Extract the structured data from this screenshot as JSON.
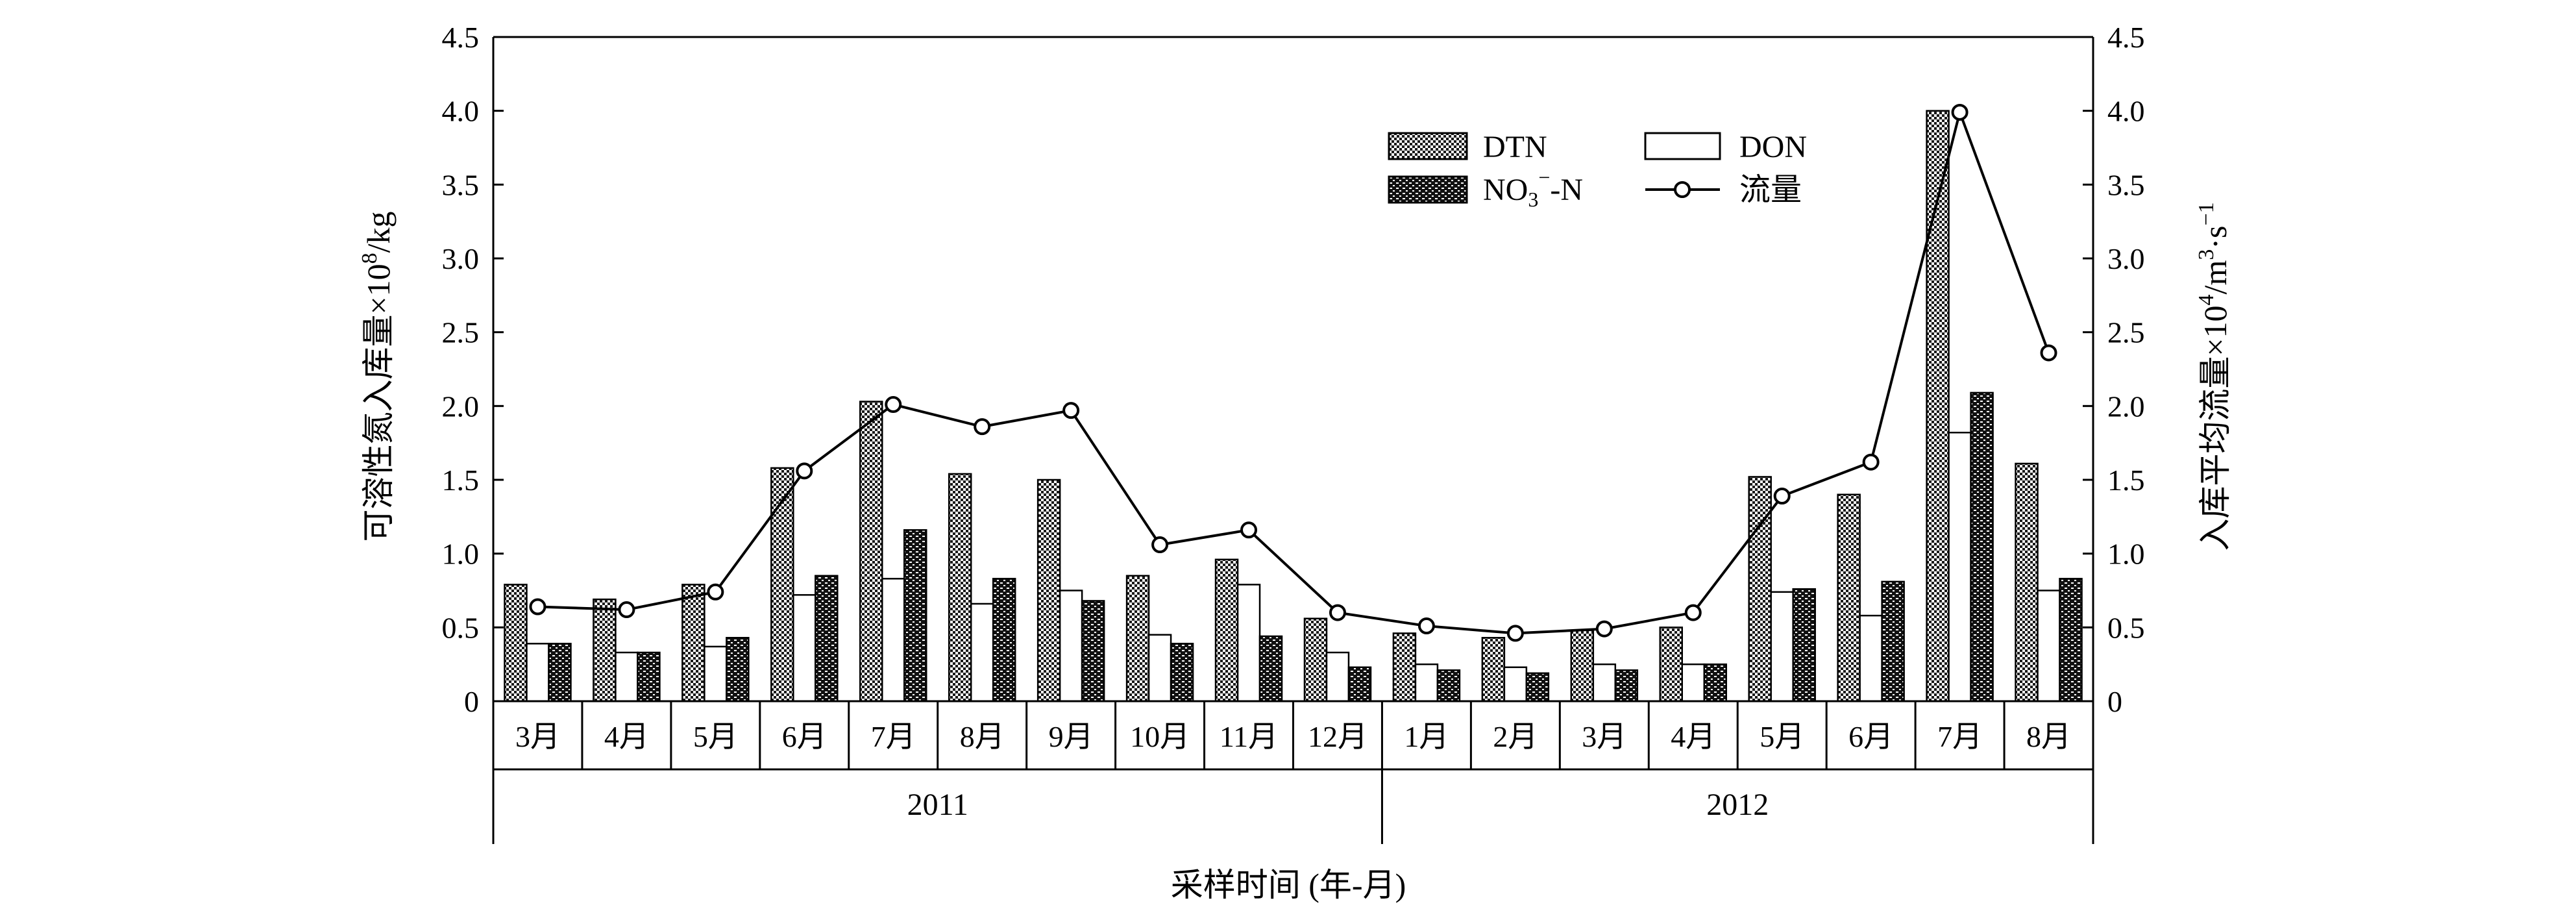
{
  "chart_data": {
    "type": "bar",
    "categories": [
      "3月",
      "4月",
      "5月",
      "6月",
      "7月",
      "8月",
      "9月",
      "10月",
      "11月",
      "12月",
      "1月",
      "2月",
      "3月",
      "4月",
      "5月",
      "6月",
      "7月",
      "8月"
    ],
    "year_groups": [
      {
        "label": "2011",
        "count": 10
      },
      {
        "label": "2012",
        "count": 8
      }
    ],
    "series": [
      {
        "name": "DTN",
        "axis": "left",
        "type": "bar",
        "pattern": "dtn-pattern",
        "values": [
          0.79,
          0.69,
          0.79,
          1.58,
          2.03,
          1.54,
          1.5,
          0.85,
          0.96,
          0.56,
          0.46,
          0.43,
          0.48,
          0.5,
          1.52,
          1.4,
          4.0,
          1.61
        ]
      },
      {
        "name": "DON",
        "axis": "left",
        "type": "bar",
        "pattern": "white",
        "values": [
          0.39,
          0.33,
          0.37,
          0.72,
          0.83,
          0.66,
          0.75,
          0.45,
          0.79,
          0.33,
          0.25,
          0.23,
          0.25,
          0.25,
          0.74,
          0.58,
          1.82,
          0.75
        ]
      },
      {
        "name": "NO3-N",
        "axis": "left",
        "type": "bar",
        "pattern": "no3-pattern",
        "values": [
          0.39,
          0.33,
          0.43,
          0.85,
          1.16,
          0.83,
          0.68,
          0.39,
          0.44,
          0.23,
          0.21,
          0.19,
          0.21,
          0.25,
          0.76,
          0.81,
          2.09,
          0.83
        ]
      },
      {
        "name": "流量",
        "axis": "right",
        "type": "line",
        "marker": "open-circle",
        "values": [
          0.64,
          0.62,
          0.74,
          1.56,
          2.01,
          1.86,
          1.97,
          1.06,
          1.16,
          0.6,
          0.51,
          0.46,
          0.49,
          0.6,
          1.39,
          1.62,
          3.99,
          2.36
        ]
      }
    ],
    "legend": {
      "placement": "top-right",
      "items": [
        {
          "key": "DTN",
          "label": "DTN"
        },
        {
          "key": "DON",
          "label": "DON"
        },
        {
          "key": "NO3-N",
          "label_main": "NO",
          "label_sub": "3",
          "label_sup": "−",
          "label_tail": "-N"
        },
        {
          "key": "流量",
          "label": "流量"
        }
      ]
    },
    "ylabel_left": {
      "text": "可溶性氮入库量×10",
      "sup": "8",
      "tail": "/kg"
    },
    "ylabel_right": {
      "text": "入库平均流量×10",
      "sup1": "4",
      "mid": "/m",
      "sup2": "3",
      "mid2": "·s",
      "sup3": "−1"
    },
    "xlabel": "采样时间 (年-月)",
    "ylim_left": [
      0,
      4.5
    ],
    "ylim_right": [
      0,
      4.5
    ],
    "yticks": [
      "0",
      "0.5",
      "1.0",
      "1.5",
      "2.0",
      "2.5",
      "3.0",
      "3.5",
      "4.0",
      "4.5"
    ],
    "grid": false
  },
  "colors": {
    "axis": "#000000",
    "bar_dark": "#1a1a1a",
    "bar_light": "#ffffff",
    "line": "#000000"
  }
}
